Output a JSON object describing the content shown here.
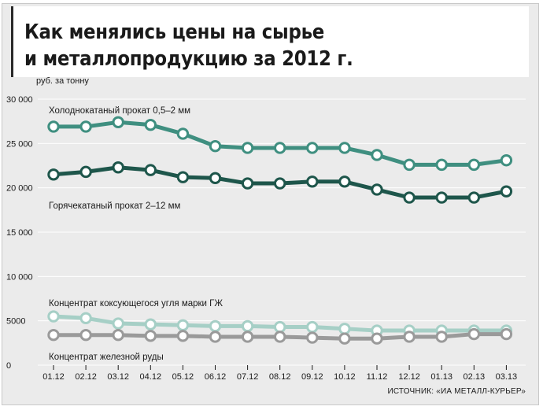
{
  "title_line1": "Как менялись цены на сырье",
  "title_line2": "и металлопродукцию за 2012 г.",
  "source": "ИСТОЧНИК: «ИА МЕТАЛЛ-КУРЬЕР»",
  "chart_data": {
    "type": "line",
    "title": "Как менялись цены на сырье и металлопродукцию за 2012 г.",
    "ylabel": "руб. за тонну",
    "xlabel": "",
    "ylim": [
      0,
      30000
    ],
    "yticks": [
      0,
      5000,
      10000,
      15000,
      20000,
      25000,
      30000
    ],
    "ytick_labels": [
      "0",
      "5000",
      "10 000",
      "15 000",
      "20 000",
      "25 000",
      "30 000"
    ],
    "grid": "horizontal",
    "categories": [
      "01.12",
      "02.12",
      "03.12",
      "04.12",
      "05.12",
      "06.12",
      "07.12",
      "08.12",
      "09.12",
      "10.12",
      "11.12",
      "12.12",
      "01.13",
      "02.13",
      "03.13"
    ],
    "series": [
      {
        "name": "Холоднокатаный прокат 0,5–2 мм",
        "color": "#3f8f80",
        "values": [
          26900,
          26900,
          27400,
          27100,
          26100,
          24700,
          24500,
          24500,
          24500,
          24500,
          23700,
          22600,
          22600,
          22600,
          23100
        ]
      },
      {
        "name": "Горячекатаный прокат 2–12 мм",
        "color": "#1e564b",
        "values": [
          21500,
          21800,
          22300,
          22000,
          21200,
          21100,
          20500,
          20500,
          20700,
          20700,
          19800,
          18900,
          18900,
          18900,
          19600
        ]
      },
      {
        "name": "Концентрат коксующегося угля марки ГЖ",
        "color": "#a6cfc6",
        "values": [
          5500,
          5300,
          4700,
          4600,
          4500,
          4400,
          4400,
          4300,
          4300,
          4100,
          3900,
          3900,
          3900,
          3900,
          3900
        ]
      },
      {
        "name": "Концентрат железной руды",
        "color": "#9a9a9a",
        "values": [
          3400,
          3400,
          3400,
          3300,
          3300,
          3200,
          3200,
          3200,
          3100,
          3000,
          3000,
          3200,
          3200,
          3500,
          3500
        ]
      }
    ]
  }
}
